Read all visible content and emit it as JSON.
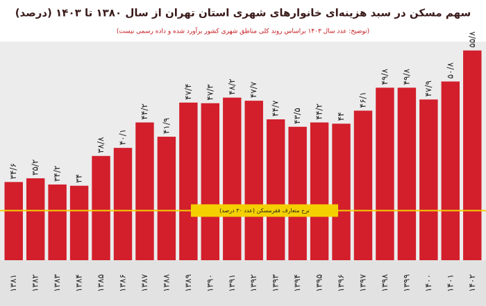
{
  "chart_data": {
    "type": "bar",
    "title": "سهم مسکن در سبد هزینه‌ای خانوارهای شهری استان تهران از سال ۱۳۸۰ تا ۱۴۰۳ (درصد)",
    "subtitle": "(توضیح: عدد سال ۱۴۰۳ براساس روند کلی مناطق شهری کشور برآورد شده و داده رسمی نیست)",
    "categories": [
      "۱۳۸۱",
      "۱۳۸۲",
      "۱۳۸۳",
      "۱۳۸۴",
      "۱۳۸۵",
      "۱۳۸۶",
      "۱۳۸۷",
      "۱۳۸۸",
      "۱۳۸۹",
      "۱۳۹۰",
      "۱۳۹۱",
      "۱۳۹۲",
      "۱۳۹۳",
      "۱۳۹۴",
      "۱۳۹۵",
      "۱۳۹۶",
      "۱۳۹۷",
      "۱۳۹۸",
      "۱۳۹۹",
      "۱۴۰۰",
      "۱۴۰۱",
      "۱۴۰۲"
    ],
    "values": [
      34.6,
      35.2,
      34.2,
      34,
      38.8,
      40.1,
      44.2,
      41.9,
      47.4,
      47.3,
      48.2,
      47.7,
      44.7,
      43.5,
      44.2,
      44,
      46.1,
      49.8,
      49.8,
      47.9,
      50.8,
      55.8
    ],
    "value_labels": [
      "۳۴/۶",
      "۳۵/۲",
      "۳۴/۲",
      "۳۴",
      "۳۸/۸",
      "۴۰/۱",
      "۴۴/۲",
      "۴۱/۹",
      "۴۷/۴",
      "۴۷/۳",
      "۴۸/۲",
      "۴۷/۷",
      "۴۴/۷",
      "۴۳/۵",
      "۴۴/۲",
      "۴۴",
      "۴۶/۱",
      "۴۹/۸",
      "۴۹/۸",
      "۴۷/۹",
      "۵۰/۸",
      "۵۵/۸"
    ],
    "color": "#d21f2b",
    "ylim": [
      22,
      57
    ],
    "reference_line": {
      "value": 30,
      "label": "نرخ متعارف فقرمسکن (عدد ۳۰ درصد)",
      "color": "#f5d000"
    }
  }
}
